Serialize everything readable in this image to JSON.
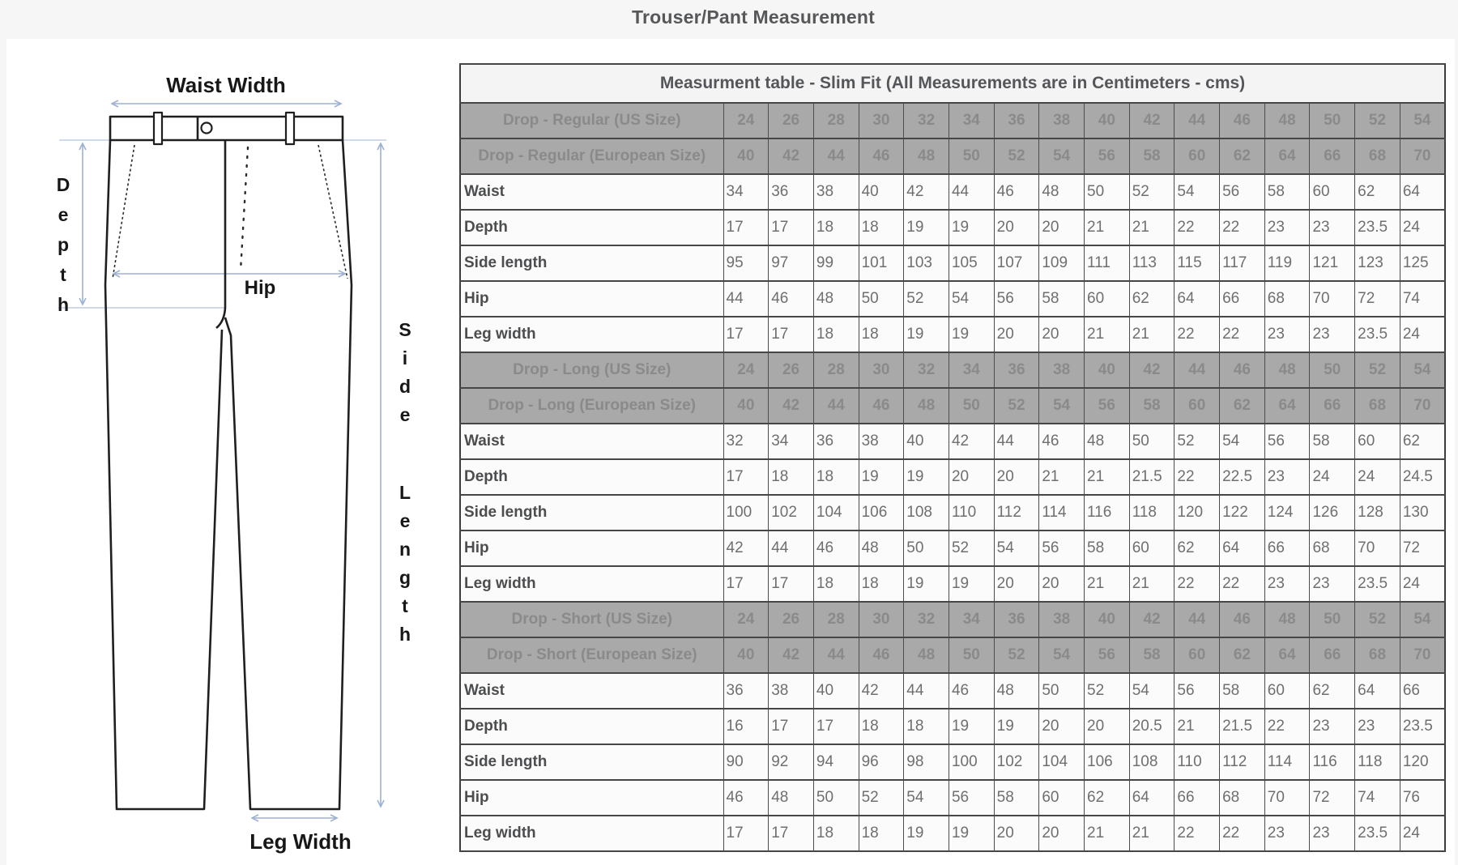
{
  "page": {
    "title": "Trouser/Pant Measurement"
  },
  "diagram": {
    "labels": {
      "waist_width": "Waist Width",
      "depth": "Depth",
      "hip": "Hip",
      "side_length": "Side Length",
      "leg_width": "Leg Width"
    },
    "arrow_color": "#9db1d3",
    "outline_color": "#1f1f1f"
  },
  "table": {
    "caption": "Measurment table - Slim Fit (All Measurements are in Centimeters - cms)",
    "header_bg": "#a9a9a9",
    "sections": [
      {
        "us_label": "Drop - Regular (US Size)",
        "eu_label": "Drop - Regular (European Size)",
        "us_sizes": [
          24,
          26,
          28,
          30,
          32,
          34,
          36,
          38,
          40,
          42,
          44,
          46,
          48,
          50,
          52,
          54
        ],
        "eu_sizes": [
          40,
          42,
          44,
          46,
          48,
          50,
          52,
          54,
          56,
          58,
          60,
          62,
          64,
          66,
          68,
          70
        ],
        "rows": [
          {
            "label": "Waist",
            "values": [
              34,
              36,
              38,
              40,
              42,
              44,
              46,
              48,
              50,
              52,
              54,
              56,
              58,
              60,
              62,
              64
            ]
          },
          {
            "label": "Depth",
            "values": [
              17,
              17,
              18,
              18,
              19,
              19,
              20,
              20,
              21,
              21,
              22,
              22,
              23,
              23,
              23.5,
              24
            ]
          },
          {
            "label": "Side length",
            "values": [
              95,
              97,
              99,
              101,
              103,
              105,
              107,
              109,
              111,
              113,
              115,
              117,
              119,
              121,
              123,
              125
            ]
          },
          {
            "label": "Hip",
            "values": [
              44,
              46,
              48,
              50,
              52,
              54,
              56,
              58,
              60,
              62,
              64,
              66,
              68,
              70,
              72,
              74
            ]
          },
          {
            "label": "Leg width",
            "values": [
              17,
              17,
              18,
              18,
              19,
              19,
              20,
              20,
              21,
              21,
              22,
              22,
              23,
              23,
              23.5,
              24
            ]
          }
        ]
      },
      {
        "us_label": "Drop - Long (US Size)",
        "eu_label": "Drop - Long (European Size)",
        "us_sizes": [
          24,
          26,
          28,
          30,
          32,
          34,
          36,
          38,
          40,
          42,
          44,
          46,
          48,
          50,
          52,
          54
        ],
        "eu_sizes": [
          40,
          42,
          44,
          46,
          48,
          50,
          52,
          54,
          56,
          58,
          60,
          62,
          64,
          66,
          68,
          70
        ],
        "rows": [
          {
            "label": "Waist",
            "values": [
              32,
              34,
              36,
              38,
              40,
              42,
              44,
              46,
              48,
              50,
              52,
              54,
              56,
              58,
              60,
              62
            ]
          },
          {
            "label": "Depth",
            "values": [
              17,
              18,
              18,
              19,
              19,
              20,
              20,
              21,
              21,
              21.5,
              22,
              22.5,
              23,
              24,
              24,
              24.5
            ]
          },
          {
            "label": "Side length",
            "values": [
              100,
              102,
              104,
              106,
              108,
              110,
              112,
              114,
              116,
              118,
              120,
              122,
              124,
              126,
              128,
              130
            ]
          },
          {
            "label": "Hip",
            "values": [
              42,
              44,
              46,
              48,
              50,
              52,
              54,
              56,
              58,
              60,
              62,
              64,
              66,
              68,
              70,
              72
            ]
          },
          {
            "label": "Leg width",
            "values": [
              17,
              17,
              18,
              18,
              19,
              19,
              20,
              20,
              21,
              21,
              22,
              22,
              23,
              23,
              23.5,
              24
            ]
          }
        ]
      },
      {
        "us_label": "Drop - Short (US Size)",
        "eu_label": "Drop - Short (European Size)",
        "us_sizes": [
          24,
          26,
          28,
          30,
          32,
          34,
          36,
          38,
          40,
          42,
          44,
          46,
          48,
          50,
          52,
          54
        ],
        "eu_sizes": [
          40,
          42,
          44,
          46,
          48,
          50,
          52,
          54,
          56,
          58,
          60,
          62,
          64,
          66,
          68,
          70
        ],
        "rows": [
          {
            "label": "Waist",
            "values": [
              36,
              38,
              40,
              42,
              44,
              46,
              48,
              50,
              52,
              54,
              56,
              58,
              60,
              62,
              64,
              66
            ]
          },
          {
            "label": "Depth",
            "values": [
              16,
              17,
              17,
              18,
              18,
              19,
              19,
              20,
              20,
              20.5,
              21,
              21.5,
              22,
              23,
              23,
              23.5
            ]
          },
          {
            "label": "Side length",
            "values": [
              90,
              92,
              94,
              96,
              98,
              100,
              102,
              104,
              106,
              108,
              110,
              112,
              114,
              116,
              118,
              120
            ]
          },
          {
            "label": "Hip",
            "values": [
              46,
              48,
              50,
              52,
              54,
              56,
              58,
              60,
              62,
              64,
              66,
              68,
              70,
              72,
              74,
              76
            ]
          },
          {
            "label": "Leg width",
            "values": [
              17,
              17,
              18,
              18,
              19,
              19,
              20,
              20,
              21,
              21,
              22,
              22,
              23,
              23,
              23.5,
              24
            ]
          }
        ]
      }
    ]
  }
}
